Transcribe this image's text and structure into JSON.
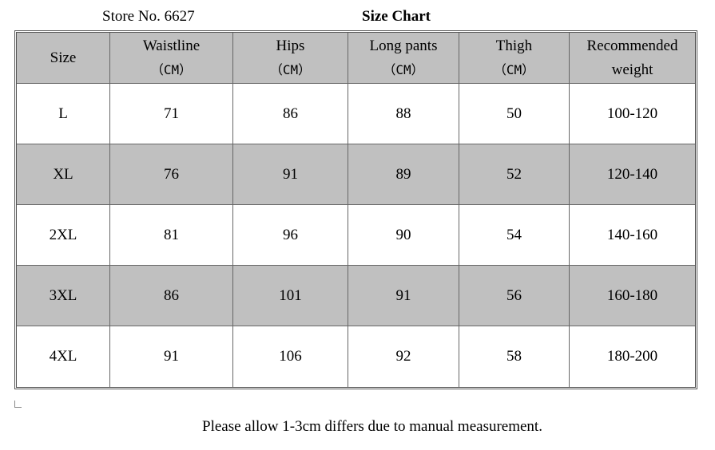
{
  "header": {
    "store": "Store No. 6627",
    "title": "Size Chart"
  },
  "table": {
    "columns": [
      {
        "label": "Size"
      },
      {
        "label": "Waistline",
        "unit": "（CM）"
      },
      {
        "label": "Hips",
        "unit": "（CM）"
      },
      {
        "label": "Long pants",
        "unit": "（CM）"
      },
      {
        "label": "Thigh",
        "unit": "（CM）"
      },
      {
        "label": "Recommended weight"
      }
    ],
    "rows": [
      [
        "L",
        71,
        86,
        88,
        50,
        "100-120"
      ],
      [
        "XL",
        76,
        91,
        89,
        52,
        "120-140"
      ],
      [
        "2XL",
        81,
        96,
        90,
        54,
        "140-160"
      ],
      [
        "3XL",
        86,
        101,
        91,
        56,
        "160-180"
      ],
      [
        "4XL",
        91,
        106,
        92,
        58,
        "180-200"
      ]
    ]
  },
  "footer": {
    "note": "Please allow 1-3cm differs due to manual measurement."
  }
}
